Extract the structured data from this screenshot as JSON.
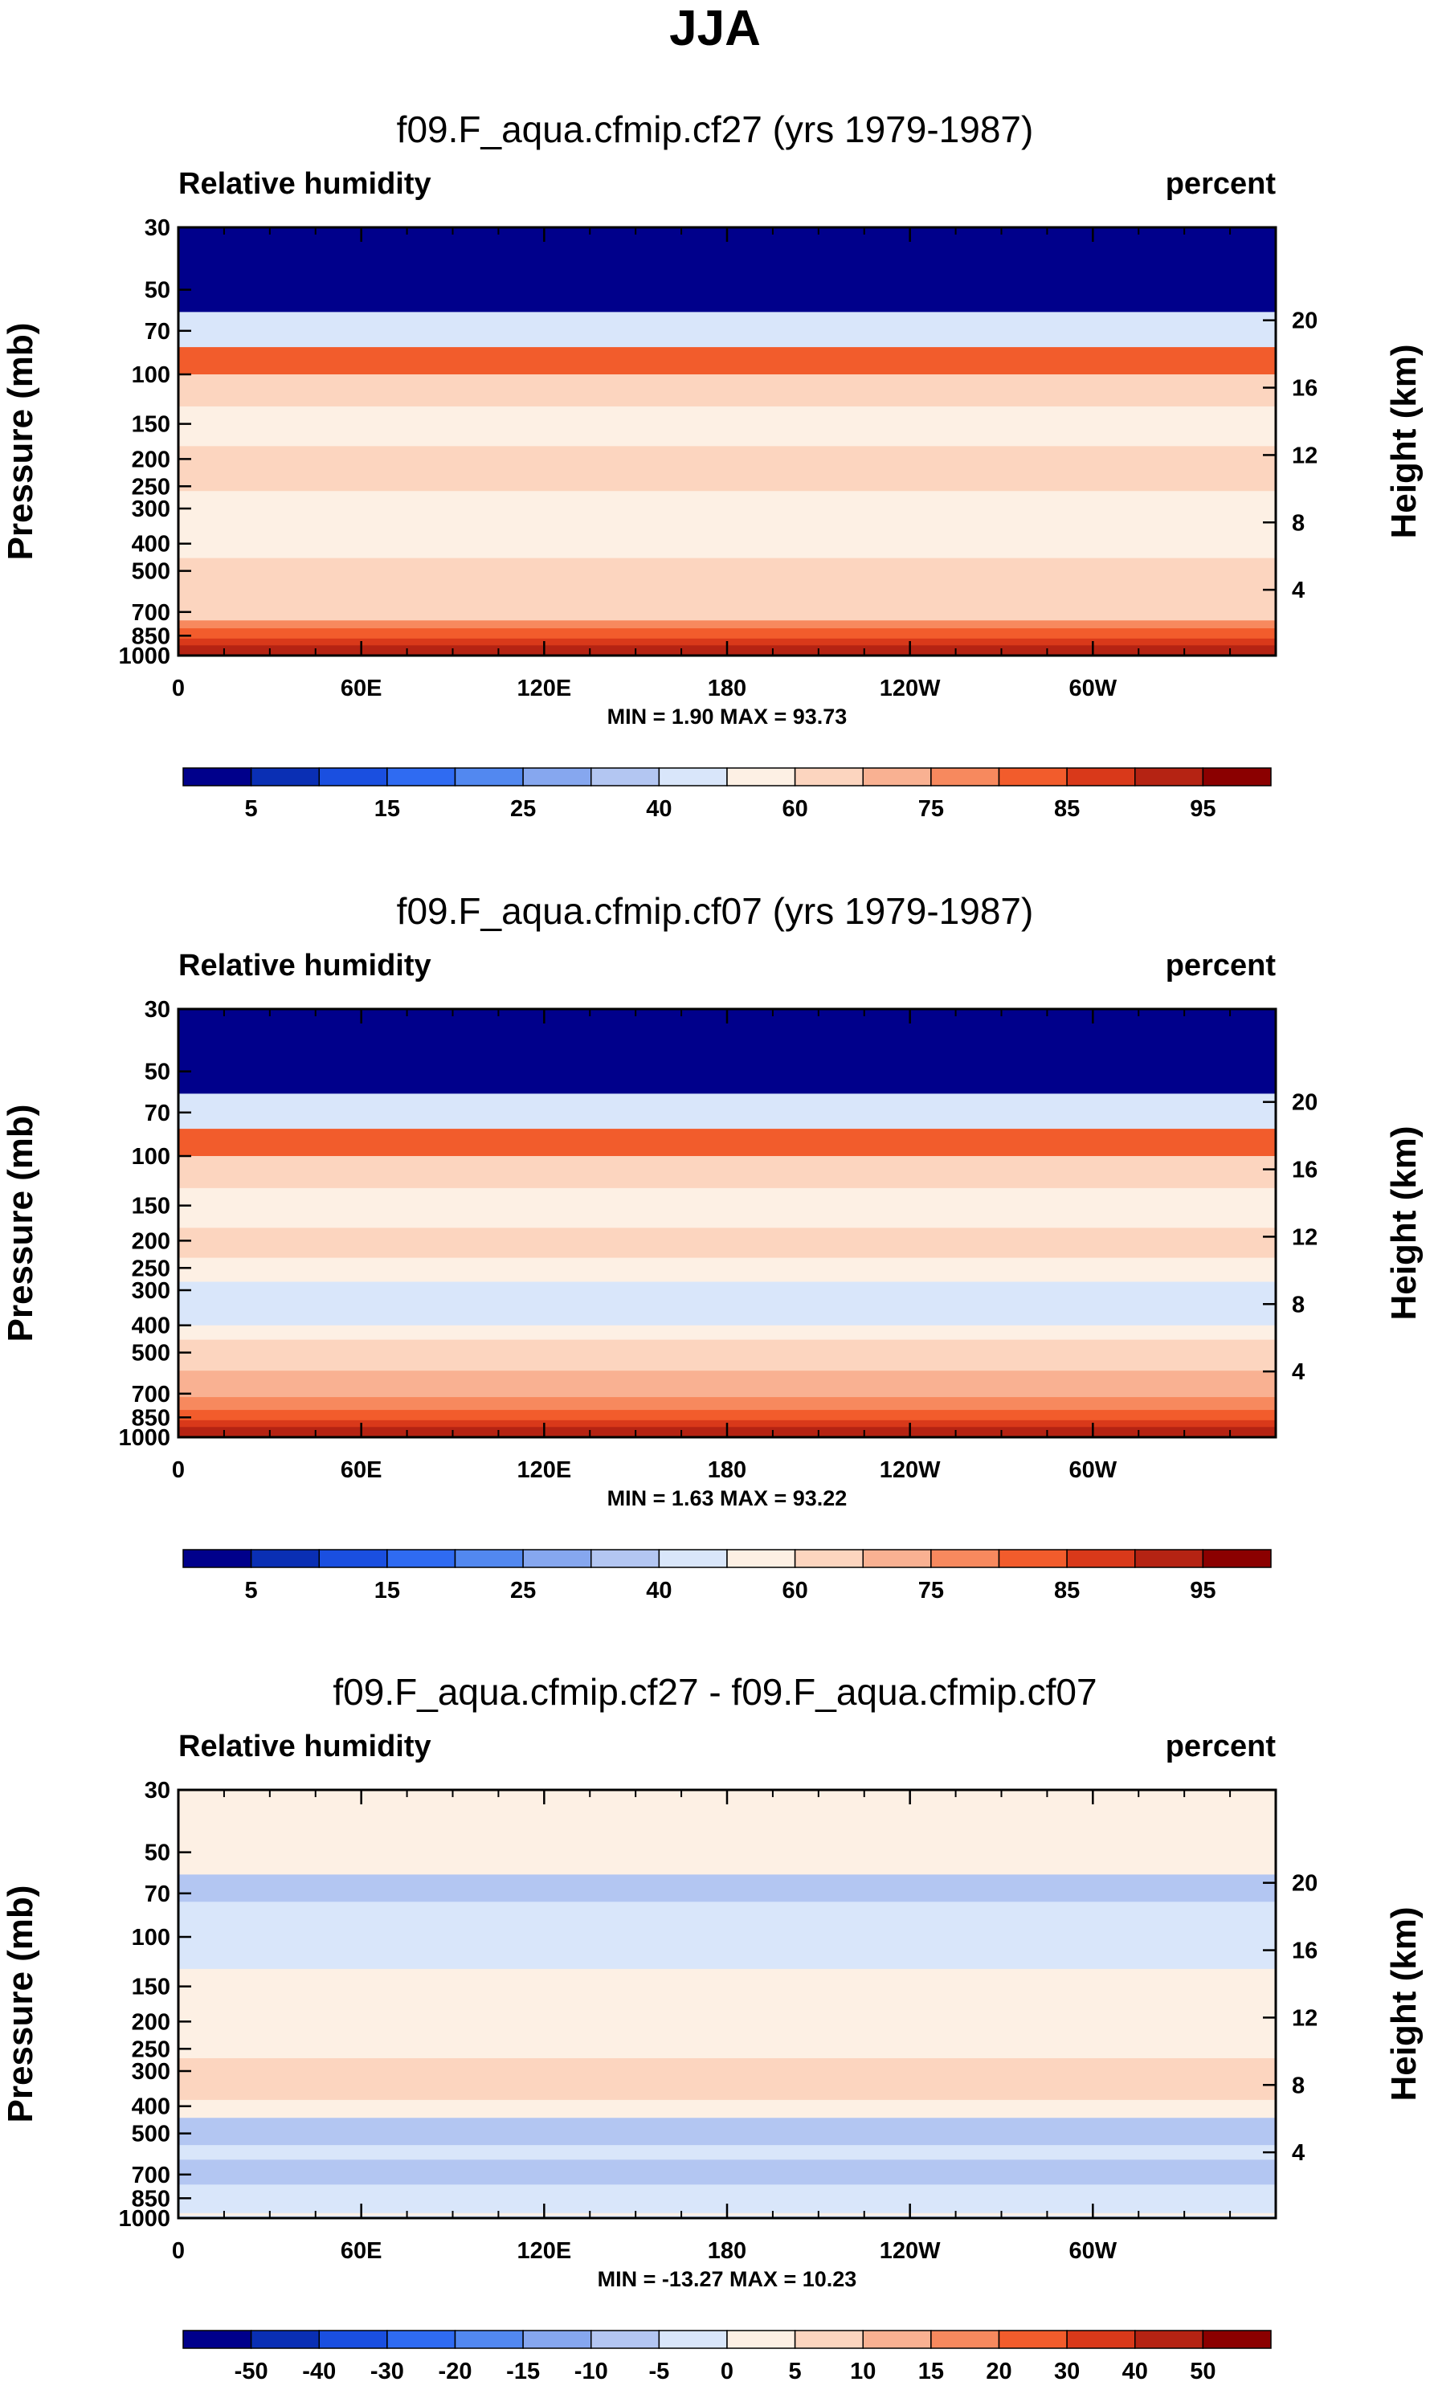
{
  "figure_title": "JJA",
  "chart_data": [
    {
      "type": "contour",
      "title": "f09.F_aqua.cfmip.cf27 (yrs 1979-1987)",
      "left_label": "Relative humidity",
      "right_label": "percent",
      "ylabel": "Pressure (mb)",
      "ylabel_right": "Height (km)",
      "xticks": [
        "0",
        "60E",
        "120E",
        "180",
        "120W",
        "60W"
      ],
      "pressure_ticks": [
        "30",
        "50",
        "70",
        "100",
        "150",
        "200",
        "250",
        "300",
        "400",
        "500",
        "700",
        "850",
        "1000"
      ],
      "height_ticks": [
        "20",
        "16",
        "12",
        "8",
        "4"
      ],
      "min_max": "MIN =   1.90  MAX =  93.73",
      "colorbar_ticks": [
        "5",
        "15",
        "25",
        "40",
        "60",
        "75",
        "85",
        "95"
      ],
      "contour_levels": [
        5,
        10,
        15,
        20,
        25,
        30,
        40,
        50,
        60,
        70,
        75,
        80,
        85,
        90,
        95
      ],
      "profile": [
        {
          "pressure_top": 30,
          "pressure_bottom": 60,
          "rh": 3
        },
        {
          "pressure_top": 60,
          "pressure_bottom": 80,
          "rh": 40
        },
        {
          "pressure_top": 80,
          "pressure_bottom": 100,
          "rh": 80
        },
        {
          "pressure_top": 100,
          "pressure_bottom": 130,
          "rh": 65
        },
        {
          "pressure_top": 130,
          "pressure_bottom": 180,
          "rh": 55
        },
        {
          "pressure_top": 180,
          "pressure_bottom": 260,
          "rh": 65
        },
        {
          "pressure_top": 260,
          "pressure_bottom": 450,
          "rh": 55
        },
        {
          "pressure_top": 450,
          "pressure_bottom": 750,
          "rh": 65
        },
        {
          "pressure_top": 750,
          "pressure_bottom": 800,
          "rh": 75
        },
        {
          "pressure_top": 800,
          "pressure_bottom": 870,
          "rh": 80
        },
        {
          "pressure_top": 870,
          "pressure_bottom": 920,
          "rh": 85
        },
        {
          "pressure_top": 920,
          "pressure_bottom": 1000,
          "rh": 90
        }
      ]
    },
    {
      "type": "contour",
      "title": "f09.F_aqua.cfmip.cf07 (yrs 1979-1987)",
      "left_label": "Relative humidity",
      "right_label": "percent",
      "ylabel": "Pressure (mb)",
      "ylabel_right": "Height (km)",
      "xticks": [
        "0",
        "60E",
        "120E",
        "180",
        "120W",
        "60W"
      ],
      "pressure_ticks": [
        "30",
        "50",
        "70",
        "100",
        "150",
        "200",
        "250",
        "300",
        "400",
        "500",
        "700",
        "850",
        "1000"
      ],
      "height_ticks": [
        "20",
        "16",
        "12",
        "8",
        "4"
      ],
      "min_max": "MIN =   1.63  MAX =  93.22",
      "colorbar_ticks": [
        "5",
        "15",
        "25",
        "40",
        "60",
        "75",
        "85",
        "95"
      ],
      "contour_levels": [
        5,
        10,
        15,
        20,
        25,
        30,
        40,
        50,
        60,
        70,
        75,
        80,
        85,
        90,
        95
      ],
      "profile": [
        {
          "pressure_top": 30,
          "pressure_bottom": 60,
          "rh": 3
        },
        {
          "pressure_top": 60,
          "pressure_bottom": 80,
          "rh": 40
        },
        {
          "pressure_top": 80,
          "pressure_bottom": 100,
          "rh": 80
        },
        {
          "pressure_top": 100,
          "pressure_bottom": 130,
          "rh": 65
        },
        {
          "pressure_top": 130,
          "pressure_bottom": 180,
          "rh": 55
        },
        {
          "pressure_top": 180,
          "pressure_bottom": 230,
          "rh": 65
        },
        {
          "pressure_top": 230,
          "pressure_bottom": 280,
          "rh": 55
        },
        {
          "pressure_top": 280,
          "pressure_bottom": 400,
          "rh": 45
        },
        {
          "pressure_top": 400,
          "pressure_bottom": 450,
          "rh": 55
        },
        {
          "pressure_top": 450,
          "pressure_bottom": 580,
          "rh": 65
        },
        {
          "pressure_top": 580,
          "pressure_bottom": 720,
          "rh": 70
        },
        {
          "pressure_top": 720,
          "pressure_bottom": 800,
          "rh": 75
        },
        {
          "pressure_top": 800,
          "pressure_bottom": 870,
          "rh": 80
        },
        {
          "pressure_top": 870,
          "pressure_bottom": 920,
          "rh": 85
        },
        {
          "pressure_top": 920,
          "pressure_bottom": 1000,
          "rh": 90
        }
      ]
    },
    {
      "type": "contour",
      "title": "f09.F_aqua.cfmip.cf27 - f09.F_aqua.cfmip.cf07",
      "left_label": "Relative humidity",
      "right_label": "percent",
      "ylabel": "Pressure (mb)",
      "ylabel_right": "Height (km)",
      "xticks": [
        "0",
        "60E",
        "120E",
        "180",
        "120W",
        "60W"
      ],
      "pressure_ticks": [
        "30",
        "50",
        "70",
        "100",
        "150",
        "200",
        "250",
        "300",
        "400",
        "500",
        "700",
        "850",
        "1000"
      ],
      "height_ticks": [
        "20",
        "16",
        "12",
        "8",
        "4"
      ],
      "min_max": "MIN = -13.27  MAX =  10.23",
      "colorbar_ticks": [
        "-50",
        "-40",
        "-30",
        "-20",
        "-15",
        "-10",
        "-5",
        "0",
        "5",
        "10",
        "15",
        "20",
        "30",
        "40",
        "50"
      ],
      "contour_levels": [
        -50,
        -40,
        -30,
        -20,
        -15,
        -10,
        -5,
        0,
        5,
        10,
        15,
        20,
        30,
        40,
        50
      ],
      "profile": [
        {
          "pressure_top": 30,
          "pressure_bottom": 60,
          "rh": 2
        },
        {
          "pressure_top": 60,
          "pressure_bottom": 75,
          "rh": -7
        },
        {
          "pressure_top": 75,
          "pressure_bottom": 130,
          "rh": -2
        },
        {
          "pressure_top": 130,
          "pressure_bottom": 270,
          "rh": 2
        },
        {
          "pressure_top": 270,
          "pressure_bottom": 380,
          "rh": 6
        },
        {
          "pressure_top": 380,
          "pressure_bottom": 440,
          "rh": 2
        },
        {
          "pressure_top": 440,
          "pressure_bottom": 550,
          "rh": -7
        },
        {
          "pressure_top": 550,
          "pressure_bottom": 620,
          "rh": -3
        },
        {
          "pressure_top": 620,
          "pressure_bottom": 760,
          "rh": -7
        },
        {
          "pressure_top": 760,
          "pressure_bottom": 960,
          "rh": -3
        },
        {
          "pressure_top": 960,
          "pressure_bottom": 980,
          "rh": 2
        },
        {
          "pressure_top": 980,
          "pressure_bottom": 1000,
          "rh": -3
        }
      ]
    }
  ],
  "colors": {
    "colormap": [
      "#00008b",
      "#0a2fb4",
      "#1a4fe0",
      "#2f6bf2",
      "#5288f0",
      "#86a7ef",
      "#b3c6f2",
      "#d9e6fa",
      "#fdf0e4",
      "#fcd5bf",
      "#f9b192",
      "#f7895e",
      "#f25c2c",
      "#d9391a",
      "#b52313",
      "#8b0000"
    ],
    "frame": "#000000"
  }
}
